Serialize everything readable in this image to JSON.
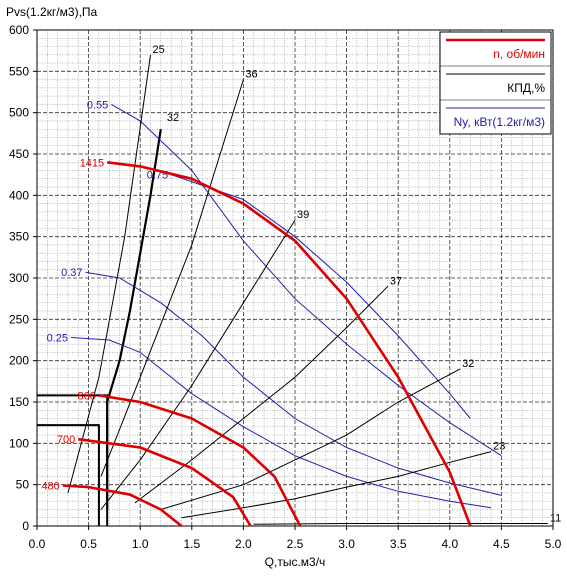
{
  "chart_data": {
    "type": "line",
    "title": "",
    "ylabel": "Pvs(1.2кг/м3),Па",
    "xlabel": "Q,тыс.м3/ч",
    "xlim": [
      0,
      5
    ],
    "ylim": [
      0,
      600
    ],
    "x_ticks": [
      0,
      0.5,
      1,
      1.5,
      2,
      2.5,
      3,
      3.5,
      4,
      4.5,
      5
    ],
    "x_tick_labels": [
      "0.0",
      "0.5",
      "1.0",
      "1.5",
      "2.0",
      "2.5",
      "3.0",
      "3.5",
      "4.0",
      "4.5",
      "5.0"
    ],
    "y_ticks": [
      0,
      50,
      100,
      150,
      200,
      250,
      300,
      350,
      400,
      450,
      500,
      550,
      600
    ],
    "y_tick_labels": [
      "0",
      "50",
      "100",
      "150",
      "200",
      "250",
      "300",
      "350",
      "400",
      "450",
      "500",
      "550",
      "600"
    ],
    "grid": true,
    "legend_position": "top-right",
    "legend": [
      {
        "label": "n, об/мин",
        "color": "#dd0000"
      },
      {
        "label": "КПД,%",
        "color": "#000000"
      },
      {
        "label": "Ny, кВт(1.2кг/м3)",
        "color": "#2222aa"
      }
    ],
    "colors": {
      "speed": "#dd0000",
      "efficiency": "#000000",
      "power": "#2222aa",
      "limit": "#000000"
    },
    "speed_curves": [
      {
        "label": "1415",
        "points": [
          [
            0.68,
            440
          ],
          [
            1.0,
            435
          ],
          [
            1.5,
            420
          ],
          [
            2.0,
            390
          ],
          [
            2.5,
            345
          ],
          [
            3.0,
            275
          ],
          [
            3.5,
            180
          ],
          [
            4.0,
            65
          ],
          [
            4.2,
            0
          ]
        ]
      },
      {
        "label": "860",
        "points": [
          [
            0.6,
            158
          ],
          [
            1.0,
            150
          ],
          [
            1.5,
            130
          ],
          [
            2.0,
            95
          ],
          [
            2.3,
            60
          ],
          [
            2.55,
            0
          ]
        ]
      },
      {
        "label": "700",
        "points": [
          [
            0.4,
            105
          ],
          [
            1.0,
            95
          ],
          [
            1.5,
            70
          ],
          [
            1.9,
            35
          ],
          [
            2.07,
            0
          ]
        ]
      },
      {
        "label": "480",
        "points": [
          [
            0.25,
            49
          ],
          [
            0.5,
            47
          ],
          [
            0.9,
            38
          ],
          [
            1.2,
            20
          ],
          [
            1.4,
            0
          ]
        ]
      }
    ],
    "power_curves": [
      {
        "label": "0.55",
        "points": [
          [
            0.72,
            510
          ],
          [
            1.0,
            490
          ],
          [
            1.5,
            430
          ],
          [
            2.0,
            345
          ],
          [
            2.5,
            275
          ],
          [
            3.0,
            220
          ],
          [
            3.5,
            170
          ],
          [
            4.0,
            125
          ],
          [
            4.5,
            85
          ]
        ]
      },
      {
        "label": "0.75",
        "points": [
          [
            1.3,
            425
          ],
          [
            2.0,
            395
          ],
          [
            2.5,
            350
          ],
          [
            3.0,
            295
          ],
          [
            3.5,
            230
          ],
          [
            4.0,
            160
          ],
          [
            4.2,
            130
          ]
        ]
      },
      {
        "label": "0.37",
        "points": [
          [
            0.47,
            307
          ],
          [
            0.8,
            300
          ],
          [
            1.2,
            270
          ],
          [
            1.6,
            230
          ],
          [
            2.0,
            180
          ],
          [
            2.5,
            130
          ],
          [
            3.0,
            95
          ],
          [
            3.5,
            70
          ],
          [
            4.0,
            52
          ],
          [
            4.5,
            37
          ]
        ]
      },
      {
        "label": "0.25",
        "points": [
          [
            0.33,
            228
          ],
          [
            0.7,
            225
          ],
          [
            1.0,
            210
          ],
          [
            1.5,
            160
          ],
          [
            2.0,
            120
          ],
          [
            2.5,
            85
          ],
          [
            3.0,
            60
          ],
          [
            3.5,
            42
          ],
          [
            4.0,
            30
          ],
          [
            4.4,
            22
          ]
        ]
      }
    ],
    "efficiency_lines": [
      {
        "label": "25",
        "points": [
          [
            0.3,
            40
          ],
          [
            0.6,
            180
          ],
          [
            0.85,
            350
          ],
          [
            1.1,
            570
          ]
        ]
      },
      {
        "label": "36",
        "points": [
          [
            0.62,
            60
          ],
          [
            1.0,
            180
          ],
          [
            1.5,
            340
          ],
          [
            2.0,
            540
          ]
        ]
      },
      {
        "label": "39",
        "points": [
          [
            0.62,
            20
          ],
          [
            1.0,
            80
          ],
          [
            1.5,
            170
          ],
          [
            2.0,
            270
          ],
          [
            2.5,
            370
          ]
        ]
      },
      {
        "label": "37",
        "points": [
          [
            0.95,
            28
          ],
          [
            1.5,
            80
          ],
          [
            2.0,
            130
          ],
          [
            2.5,
            180
          ],
          [
            3.0,
            240
          ],
          [
            3.4,
            290
          ]
        ]
      },
      {
        "label": "32",
        "points": [
          [
            1.2,
            20
          ],
          [
            2.0,
            50
          ],
          [
            2.5,
            80
          ],
          [
            3.0,
            110
          ],
          [
            3.5,
            150
          ],
          [
            4.1,
            190
          ]
        ]
      },
      {
        "label": "23",
        "points": [
          [
            1.4,
            10
          ],
          [
            2.0,
            22
          ],
          [
            2.5,
            33
          ],
          [
            3.0,
            47
          ],
          [
            3.5,
            60
          ],
          [
            4.0,
            77
          ],
          [
            4.4,
            90
          ]
        ]
      },
      {
        "label": "11",
        "points": [
          [
            2.1,
            2
          ],
          [
            3.0,
            3
          ],
          [
            4.0,
            3
          ],
          [
            4.95,
            3
          ]
        ]
      }
    ],
    "limit_curve": {
      "label": "32",
      "points": [
        [
          0.68,
          20
        ],
        [
          0.68,
          150
        ],
        [
          0.8,
          200
        ],
        [
          0.9,
          260
        ],
        [
          1.0,
          330
        ],
        [
          1.1,
          400
        ],
        [
          1.2,
          480
        ]
      ]
    },
    "limit_boxes": [
      {
        "q": 0.68,
        "p": 158
      },
      {
        "q": 0.6,
        "p": 122
      }
    ]
  }
}
